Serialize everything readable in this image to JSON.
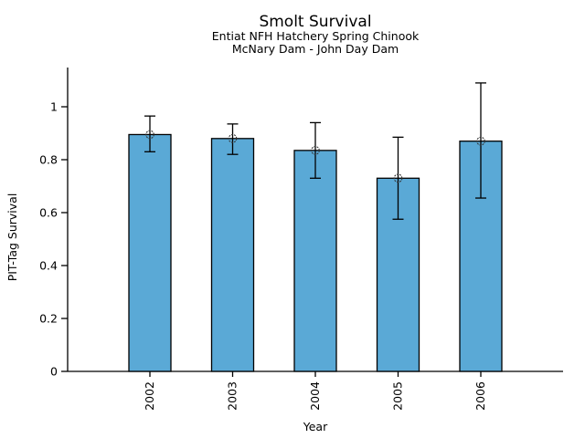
{
  "chart_data": {
    "type": "bar",
    "title": "Smolt Survival",
    "subtitle1": "Entiat NFH Hatchery Spring Chinook",
    "subtitle2": "McNary Dam - John Day Dam",
    "xlabel": "Year",
    "ylabel": "PIT-Tag Survival",
    "categories": [
      "2002",
      "2003",
      "2004",
      "2005",
      "2006"
    ],
    "values": [
      0.895,
      0.88,
      0.835,
      0.73,
      0.87
    ],
    "error_low": [
      0.83,
      0.82,
      0.73,
      0.575,
      0.655
    ],
    "error_high": [
      0.965,
      0.935,
      0.94,
      0.885,
      1.09
    ],
    "yticks": [
      0,
      0.2,
      0.4,
      0.6,
      0.8,
      1
    ],
    "ytick_labels": [
      "0",
      "0.2",
      "0.4",
      "0.6",
      "0.8",
      "1"
    ],
    "ylim": [
      0,
      1.15
    ],
    "x_tick_rotation": 90,
    "grid": false,
    "legend": false,
    "marker": "open-circle",
    "bar_color": "#5AA9D6",
    "bar_border_color": "#000000",
    "error_bar_color": "#000000",
    "text_color": "#000000",
    "background_color": "#FFFFFF"
  }
}
